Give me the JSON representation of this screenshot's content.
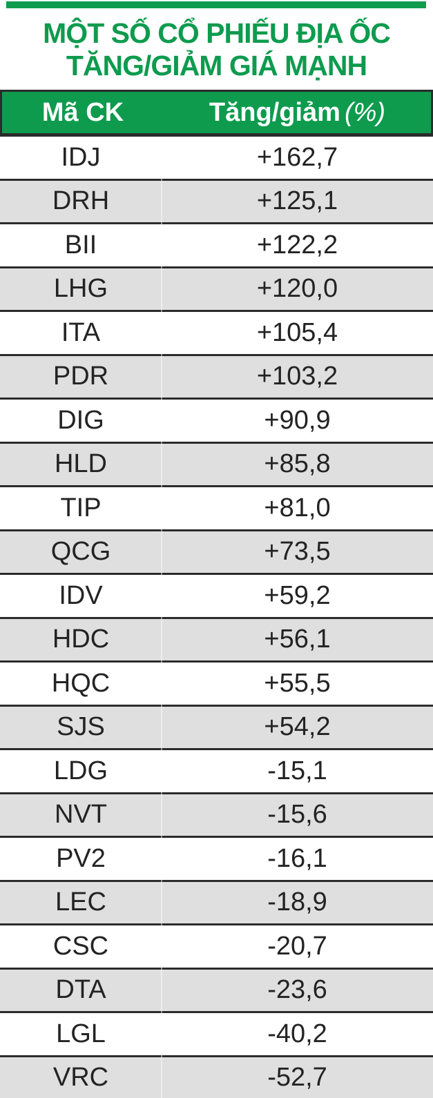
{
  "colors": {
    "accent_green": "#0e9b4e",
    "row_stripe_gray": "#dfdfdf",
    "divider_dark": "#2b2b2b",
    "text_dark": "#232323",
    "header_text": "#ffffff"
  },
  "title": {
    "line1": "MỘT SỐ CỔ PHIẾU ĐỊA ỐC",
    "line2": "TĂNG/GIẢM GIÁ MẠNH"
  },
  "table": {
    "headers": {
      "ticker": "Mã CK",
      "change": "Tăng/giảm",
      "change_unit": "(%)"
    },
    "rows": [
      {
        "ticker": "IDJ",
        "change": "+162,7"
      },
      {
        "ticker": "DRH",
        "change": "+125,1"
      },
      {
        "ticker": "BII",
        "change": "+122,2"
      },
      {
        "ticker": "LHG",
        "change": "+120,0"
      },
      {
        "ticker": "ITA",
        "change": "+105,4"
      },
      {
        "ticker": "PDR",
        "change": "+103,2"
      },
      {
        "ticker": "DIG",
        "change": "+90,9"
      },
      {
        "ticker": "HLD",
        "change": "+85,8"
      },
      {
        "ticker": "TIP",
        "change": "+81,0"
      },
      {
        "ticker": "QCG",
        "change": "+73,5"
      },
      {
        "ticker": "IDV",
        "change": "+59,2"
      },
      {
        "ticker": "HDC",
        "change": "+56,1"
      },
      {
        "ticker": "HQC",
        "change": "+55,5"
      },
      {
        "ticker": "SJS",
        "change": "+54,2"
      },
      {
        "ticker": "LDG",
        "change": "-15,1"
      },
      {
        "ticker": "NVT",
        "change": "-15,6"
      },
      {
        "ticker": "PV2",
        "change": "-16,1"
      },
      {
        "ticker": "LEC",
        "change": "-18,9"
      },
      {
        "ticker": "CSC",
        "change": "-20,7"
      },
      {
        "ticker": "DTA",
        "change": "-23,6"
      },
      {
        "ticker": "LGL",
        "change": "-40,2"
      },
      {
        "ticker": "VRC",
        "change": "-52,7"
      }
    ]
  },
  "chart_data": {
    "type": "table",
    "title": "MỘT SỐ CỔ PHIẾU ĐỊA ỐC TĂNG/GIẢM GIÁ MẠNH",
    "columns": [
      "Mã CK",
      "Tăng/giảm (%)"
    ],
    "rows": [
      [
        "IDJ",
        162.7
      ],
      [
        "DRH",
        125.1
      ],
      [
        "BII",
        122.2
      ],
      [
        "LHG",
        120.0
      ],
      [
        "ITA",
        105.4
      ],
      [
        "PDR",
        103.2
      ],
      [
        "DIG",
        90.9
      ],
      [
        "HLD",
        85.8
      ],
      [
        "TIP",
        81.0
      ],
      [
        "QCG",
        73.5
      ],
      [
        "IDV",
        59.2
      ],
      [
        "HDC",
        56.1
      ],
      [
        "HQC",
        55.5
      ],
      [
        "SJS",
        54.2
      ],
      [
        "LDG",
        -15.1
      ],
      [
        "NVT",
        -15.6
      ],
      [
        "PV2",
        -16.1
      ],
      [
        "LEC",
        -18.9
      ],
      [
        "CSC",
        -20.7
      ],
      [
        "DTA",
        -23.6
      ],
      [
        "LGL",
        -40.2
      ],
      [
        "VRC",
        -52.7
      ]
    ],
    "value_format": "comma-decimal, signed percent",
    "layout": {
      "striped_rows": true,
      "header_background": "#0e9b4e"
    }
  }
}
